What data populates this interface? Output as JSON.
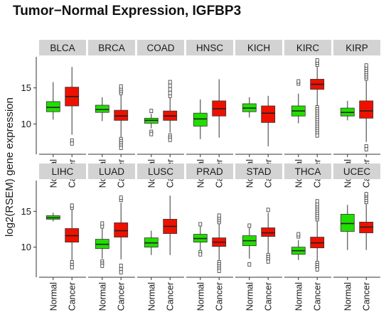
{
  "chart_data": {
    "type": "box",
    "title": "Tumor−Normal Expression,  IGFBP3",
    "ylabel": "log2(RSEM) gene expression",
    "xlabel": "",
    "groups": [
      "Normal",
      "Cancer"
    ],
    "colors": {
      "Normal": "#22dd00",
      "Cancer": "#ee1100"
    },
    "yticks": [
      10,
      15
    ],
    "rows": [
      {
        "ylim": [
          5.8,
          19.3
        ],
        "panels": [
          {
            "name": "BLCA",
            "Normal": {
              "whisker_low": 10.6,
              "q1": 11.7,
              "median": 12.3,
              "q3": 13.1,
              "whisker_high": 15.8,
              "outliers": []
            },
            "Cancer": {
              "whisker_low": 8.5,
              "q1": 12.5,
              "median": 13.8,
              "q3": 15.1,
              "whisker_high": 17.9,
              "outliers": [
                7.7,
                7.3
              ]
            }
          },
          {
            "name": "BRCA",
            "Normal": {
              "whisker_low": 10.4,
              "q1": 11.6,
              "median": 12.0,
              "q3": 12.6,
              "whisker_high": 13.7,
              "outliers": []
            },
            "Cancer": {
              "whisker_low": 8.2,
              "q1": 10.5,
              "median": 11.1,
              "q3": 11.9,
              "whisker_high": 14.0,
              "outliers": [
                14.3,
                14.6,
                14.9,
                15.2,
                7.9,
                7.6,
                7.3,
                7.0,
                6.7
              ]
            }
          },
          {
            "name": "COAD",
            "Normal": {
              "whisker_low": 9.4,
              "q1": 10.1,
              "median": 10.5,
              "q3": 10.8,
              "whisker_high": 11.4,
              "outliers": [
                11.8,
                8.9,
                8.6
              ]
            },
            "Cancer": {
              "whisker_low": 8.8,
              "q1": 10.5,
              "median": 11.1,
              "q3": 11.8,
              "whisker_high": 13.6,
              "outliers": [
                13.9,
                14.3,
                14.8,
                15.3,
                15.8,
                8.4,
                8.1,
                7.8
              ]
            }
          },
          {
            "name": "HNSC",
            "Normal": {
              "whisker_low": 7.9,
              "q1": 9.7,
              "median": 10.7,
              "q3": 11.5,
              "whisker_high": 13.4,
              "outliers": []
            },
            "Cancer": {
              "whisker_low": 8.1,
              "q1": 11.1,
              "median": 12.1,
              "q3": 13.2,
              "whisker_high": 16.2,
              "outliers": []
            }
          },
          {
            "name": "KICH",
            "Normal": {
              "whisker_low": 10.9,
              "q1": 11.7,
              "median": 12.2,
              "q3": 12.8,
              "whisker_high": 13.7,
              "outliers": []
            },
            "Cancer": {
              "whisker_low": 6.9,
              "q1": 10.2,
              "median": 11.5,
              "q3": 12.5,
              "whisker_high": 13.9,
              "outliers": []
            }
          },
          {
            "name": "KIRC",
            "Normal": {
              "whisker_low": 10.1,
              "q1": 11.1,
              "median": 11.8,
              "q3": 12.5,
              "whisker_high": 14.2,
              "outliers": [
                15.6,
                15.9
              ]
            },
            "Cancer": {
              "whisker_low": 12.6,
              "q1": 14.8,
              "median": 15.5,
              "q3": 16.2,
              "whisker_high": 17.9,
              "outliers": [
                18.2,
                18.5,
                18.8,
                12.3,
                12.0,
                11.7,
                11.4,
                11.1,
                10.8,
                10.5,
                10.2,
                9.9,
                9.6,
                9.3,
                9.0,
                8.7,
                8.4
              ]
            }
          },
          {
            "name": "KIRP",
            "Normal": {
              "whisker_low": 10.5,
              "q1": 11.1,
              "median": 11.6,
              "q3": 12.2,
              "whisker_high": 13.2,
              "outliers": []
            },
            "Cancer": {
              "whisker_low": 7.5,
              "q1": 10.8,
              "median": 11.8,
              "q3": 13.2,
              "whisker_high": 16.0,
              "outliers": [
                16.3,
                16.6,
                16.9,
                17.2,
                17.5,
                17.8,
                18.1,
                6.9,
                6.5
              ]
            }
          }
        ]
      },
      {
        "ylim": [
          5.8,
          19.3
        ],
        "panels": [
          {
            "name": "LIHC",
            "Normal": {
              "whisker_low": 13.6,
              "q1": 13.9,
              "median": 14.1,
              "q3": 14.4,
              "whisker_high": 14.8,
              "outliers": []
            },
            "Cancer": {
              "whisker_low": 8.2,
              "q1": 10.7,
              "median": 11.6,
              "q3": 12.6,
              "whisker_high": 15.2,
              "outliers": [
                15.5,
                15.8,
                7.9,
                7.5,
                7.2
              ]
            }
          },
          {
            "name": "LUAD",
            "Normal": {
              "whisker_low": 8.4,
              "q1": 9.8,
              "median": 10.4,
              "q3": 11.1,
              "whisker_high": 12.6,
              "outliers": [
                12.9,
                13.3,
                8.0,
                7.7,
                7.4
              ]
            },
            "Cancer": {
              "whisker_low": 8.3,
              "q1": 11.4,
              "median": 12.3,
              "q3": 13.4,
              "whisker_high": 16.2,
              "outliers": [
                16.6,
                16.9,
                7.4,
                6.9,
                6.5
              ]
            }
          },
          {
            "name": "LUSC",
            "Normal": {
              "whisker_low": 8.9,
              "q1": 10.0,
              "median": 10.6,
              "q3": 11.3,
              "whisker_high": 12.3,
              "outliers": []
            },
            "Cancer": {
              "whisker_low": 8.9,
              "q1": 11.9,
              "median": 12.9,
              "q3": 13.9,
              "whisker_high": 17.2,
              "outliers": []
            }
          },
          {
            "name": "PRAD",
            "Normal": {
              "whisker_low": 9.6,
              "q1": 10.7,
              "median": 11.2,
              "q3": 11.8,
              "whisker_high": 12.9,
              "outliers": [
                13.2,
                9.3,
                9.0
              ]
            },
            "Cancer": {
              "whisker_low": 8.2,
              "q1": 10.1,
              "median": 10.7,
              "q3": 11.3,
              "whisker_high": 13.2,
              "outliers": [
                13.5,
                13.8,
                14.1,
                14.4,
                7.9,
                7.6,
                7.3,
                7.0,
                6.7
              ]
            }
          },
          {
            "name": "STAD",
            "Normal": {
              "whisker_low": 8.4,
              "q1": 10.2,
              "median": 10.9,
              "q3": 11.6,
              "whisker_high": 12.7,
              "outliers": [
                7.6,
                13.0
              ]
            },
            "Cancer": {
              "whisker_low": 9.2,
              "q1": 11.5,
              "median": 12.0,
              "q3": 12.7,
              "whisker_high": 14.8,
              "outliers": [
                15.2,
                8.9,
                8.6,
                8.3,
                8.0
              ]
            }
          },
          {
            "name": "THCA",
            "Normal": {
              "whisker_low": 8.2,
              "q1": 9.0,
              "median": 9.5,
              "q3": 10.0,
              "whisker_high": 11.0,
              "outliers": [
                11.5,
                11.8
              ]
            },
            "Cancer": {
              "whisker_low": 8.1,
              "q1": 9.9,
              "median": 10.6,
              "q3": 11.4,
              "whisker_high": 13.6,
              "outliers": [
                13.9,
                14.2,
                14.5,
                14.8,
                15.1,
                15.4,
                15.7,
                16.0,
                16.4,
                7.8,
                7.5,
                7.2,
                6.9
              ]
            }
          },
          {
            "name": "UCEC",
            "Normal": {
              "whisker_low": 9.6,
              "q1": 12.2,
              "median": 13.3,
              "q3": 14.6,
              "whisker_high": 15.9,
              "outliers": []
            },
            "Cancer": {
              "whisker_low": 9.6,
              "q1": 12.0,
              "median": 12.8,
              "q3": 13.5,
              "whisker_high": 16.0,
              "outliers": [
                16.3,
                16.6,
                16.9,
                17.2,
                17.4
              ]
            }
          }
        ]
      }
    ]
  }
}
